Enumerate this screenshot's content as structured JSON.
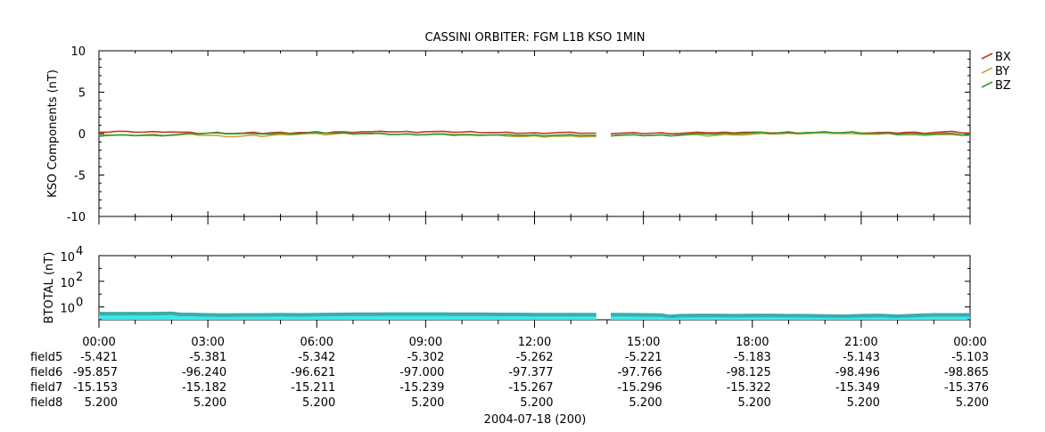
{
  "chart_data": [
    {
      "type": "line",
      "title": "CASSINI ORBITER: FGM L1B KSO 1MIN",
      "ylabel": "KSO Components (nT)",
      "ylim": [
        -10,
        10
      ],
      "yticks": [
        "10",
        "5",
        "0",
        "-5",
        "-10"
      ],
      "x_hours": [
        0,
        0.25,
        0.5,
        0.75,
        1,
        1.25,
        1.5,
        1.75,
        2,
        2.25,
        2.5,
        2.75,
        3,
        3.25,
        3.5,
        3.75,
        4,
        4.25,
        4.5,
        4.75,
        5,
        5.25,
        5.5,
        5.75,
        6,
        6.25,
        6.5,
        6.75,
        7,
        7.25,
        7.5,
        7.75,
        8,
        8.25,
        8.5,
        8.75,
        9,
        9.25,
        9.5,
        9.75,
        10,
        10.25,
        10.5,
        10.75,
        11,
        11.25,
        11.5,
        11.75,
        12,
        12.25,
        12.5,
        12.75,
        13,
        13.25,
        13.5,
        13.75,
        14,
        14.25,
        14.5,
        14.75,
        15,
        15.25,
        15.5,
        15.75,
        16,
        16.25,
        16.5,
        16.75,
        17,
        17.25,
        17.5,
        17.75,
        18,
        18.25,
        18.5,
        18.75,
        19,
        19.25,
        19.5,
        19.75,
        20,
        20.25,
        20.5,
        20.75,
        21,
        21.25,
        21.5,
        21.75,
        22,
        22.25,
        22.5,
        22.75,
        23,
        23.25,
        23.5,
        23.75,
        24
      ],
      "gap_hours": [
        13.7,
        14.1
      ],
      "series": [
        {
          "name": "BX",
          "color": "#c0392b",
          "values": [
            0.25,
            0.2,
            0.25,
            0.2,
            0.22,
            0.18,
            0.2,
            0.25,
            0.22,
            0.15,
            0.1,
            0.05,
            0.05,
            0.1,
            0.08,
            0.05,
            0.05,
            0.1,
            0.05,
            0.1,
            0.12,
            0.1,
            0.15,
            0.1,
            0.15,
            0.1,
            0.2,
            0.15,
            0.2,
            0.25,
            0.2,
            0.22,
            0.25,
            0.2,
            0.22,
            0.2,
            0.25,
            0.22,
            0.2,
            0.22,
            0.18,
            0.2,
            0.18,
            0.15,
            0.1,
            0.1,
            0.08,
            0.05,
            0.05,
            0.1,
            0.1,
            0.12,
            0.1,
            0.08,
            0.05,
            0.05,
            0.05,
            0.05,
            0.05,
            0.05,
            0.05,
            0.05,
            0.05,
            0.05,
            0.05,
            0.08,
            0.1,
            0.15,
            0.1,
            0.12,
            0.15,
            0.18,
            0.15,
            0.1,
            0.12,
            0.1,
            0.15,
            0.12,
            0.1,
            0.12,
            0.15,
            0.1,
            0.12,
            0.15,
            0.12,
            0.1,
            0.1,
            0.08,
            0.1,
            0.15,
            0.12,
            0.1,
            0.15,
            0.18,
            0.2,
            0.15,
            0.05
          ]
        },
        {
          "name": "BY",
          "color": "#c8a83a",
          "values": [
            -0.1,
            -0.15,
            -0.2,
            -0.25,
            -0.2,
            -0.15,
            -0.1,
            -0.15,
            -0.2,
            -0.15,
            -0.1,
            -0.15,
            -0.2,
            -0.25,
            -0.3,
            -0.35,
            -0.3,
            -0.25,
            -0.3,
            -0.2,
            -0.15,
            -0.1,
            -0.05,
            0,
            -0.05,
            -0.1,
            -0.05,
            0,
            0.05,
            0,
            -0.05,
            0,
            -0.05,
            -0.1,
            -0.05,
            -0.05,
            -0.1,
            -0.05,
            -0.1,
            -0.05,
            -0.1,
            -0.15,
            -0.1,
            -0.15,
            -0.2,
            -0.4,
            -0.3,
            -0.35,
            -0.3,
            -0.35,
            -0.3,
            -0.35,
            -0.35,
            -0.35,
            -0.35,
            -0.35,
            -0.2,
            -0.2,
            -0.2,
            -0.2,
            -0.2,
            -0.2,
            -0.2,
            -0.2,
            -0.2,
            -0.15,
            -0.2,
            -0.25,
            -0.2,
            -0.15,
            -0.1,
            -0.15,
            -0.1,
            -0.05,
            0,
            -0.05,
            0,
            0.05,
            0,
            0.05,
            0,
            0.05,
            0,
            -0.05,
            0,
            -0.05,
            -0.1,
            -0.05,
            -0.1,
            -0.15,
            -0.2,
            -0.15,
            -0.1,
            -0.15,
            -0.2,
            -0.15,
            -0.25
          ]
        },
        {
          "name": "BZ",
          "color": "#2e9d2e",
          "values": [
            -0.25,
            -0.2,
            -0.2,
            -0.25,
            -0.2,
            -0.2,
            -0.25,
            -0.2,
            -0.15,
            -0.1,
            -0.05,
            0,
            0.05,
            0.05,
            0.05,
            0,
            0,
            -0.05,
            0,
            -0.05,
            0,
            0.05,
            0,
            0.05,
            0.05,
            0.1,
            0.05,
            0.05,
            0,
            0.05,
            0,
            -0.05,
            -0.05,
            -0.1,
            -0.1,
            -0.1,
            -0.1,
            -0.1,
            -0.15,
            -0.15,
            -0.15,
            -0.2,
            -0.15,
            -0.15,
            -0.2,
            -0.2,
            -0.15,
            -0.2,
            -0.2,
            -0.2,
            -0.2,
            -0.2,
            -0.2,
            -0.2,
            -0.2,
            -0.2,
            -0.2,
            -0.2,
            -0.2,
            -0.2,
            -0.2,
            -0.2,
            -0.2,
            -0.2,
            -0.15,
            -0.1,
            -0.05,
            0,
            -0.05,
            0,
            0.05,
            0.05,
            0.05,
            0.1,
            0.05,
            0.1,
            0.05,
            0.1,
            0.15,
            0.1,
            0.15,
            0.15,
            0.1,
            0.15,
            0.1,
            0.05,
            0,
            0,
            -0.05,
            0,
            -0.05,
            0,
            -0.05,
            0,
            -0.05,
            -0.1,
            -0.15
          ]
        }
      ],
      "legend": [
        "BX",
        "BY",
        "BZ"
      ]
    },
    {
      "type": "area",
      "ylabel": "BTOTAL (nT)",
      "scale": "log",
      "ylim_log10": [
        -1,
        4
      ],
      "ytick_bases": [
        "10",
        "10",
        "10"
      ],
      "ytick_exps": [
        "4",
        "2",
        "0"
      ],
      "color": "#3de8e8",
      "stroke": "#3aacac",
      "x_hours": [
        0,
        0.5,
        1,
        1.5,
        2,
        2.25,
        2.5,
        3,
        3.5,
        4,
        4.5,
        5,
        5.5,
        6,
        6.5,
        7,
        7.5,
        8,
        8.5,
        9,
        9.5,
        10,
        10.5,
        11,
        11.5,
        12,
        12.5,
        13,
        13.5,
        13.7,
        14.1,
        14.5,
        15,
        15.5,
        15.75,
        16,
        16.5,
        17,
        17.5,
        18,
        18.5,
        19,
        19.5,
        20,
        20.5,
        21,
        21.5,
        22,
        22.5,
        23,
        23.5,
        24
      ],
      "values": [
        0.3,
        0.3,
        0.3,
        0.3,
        0.32,
        0.26,
        0.26,
        0.24,
        0.23,
        0.24,
        0.24,
        0.25,
        0.24,
        0.25,
        0.26,
        0.27,
        0.27,
        0.28,
        0.28,
        0.28,
        0.28,
        0.27,
        0.27,
        0.26,
        0.26,
        0.25,
        0.25,
        0.25,
        0.25,
        0.25,
        0.25,
        0.25,
        0.24,
        0.23,
        0.18,
        0.21,
        0.22,
        0.22,
        0.21,
        0.22,
        0.22,
        0.21,
        0.21,
        0.2,
        0.19,
        0.21,
        0.22,
        0.19,
        0.22,
        0.24,
        0.24,
        0.24
      ]
    }
  ],
  "x_axis": {
    "ticks": [
      "00:00",
      "03:00",
      "06:00",
      "09:00",
      "12:00",
      "15:00",
      "18:00",
      "21:00",
      "00:00"
    ],
    "date_label": "2004-07-18 (200)"
  },
  "ephemeris_rows": [
    {
      "name": "field5",
      "values": [
        "-5.421",
        "-5.381",
        "-5.342",
        "-5.302",
        "-5.262",
        "-5.221",
        "-5.183",
        "-5.143",
        "-5.103"
      ]
    },
    {
      "name": "field6",
      "values": [
        "-95.857",
        "-96.240",
        "-96.621",
        "-97.000",
        "-97.377",
        "-97.766",
        "-98.125",
        "-98.496",
        "-98.865"
      ]
    },
    {
      "name": "field7",
      "values": [
        "-15.153",
        "-15.182",
        "-15.211",
        "-15.239",
        "-15.267",
        "-15.296",
        "-15.322",
        "-15.349",
        "-15.376"
      ]
    },
    {
      "name": "field8",
      "values": [
        "5.200",
        "5.200",
        "5.200",
        "5.200",
        "5.200",
        "5.200",
        "5.200",
        "5.200",
        "5.200"
      ]
    }
  ]
}
